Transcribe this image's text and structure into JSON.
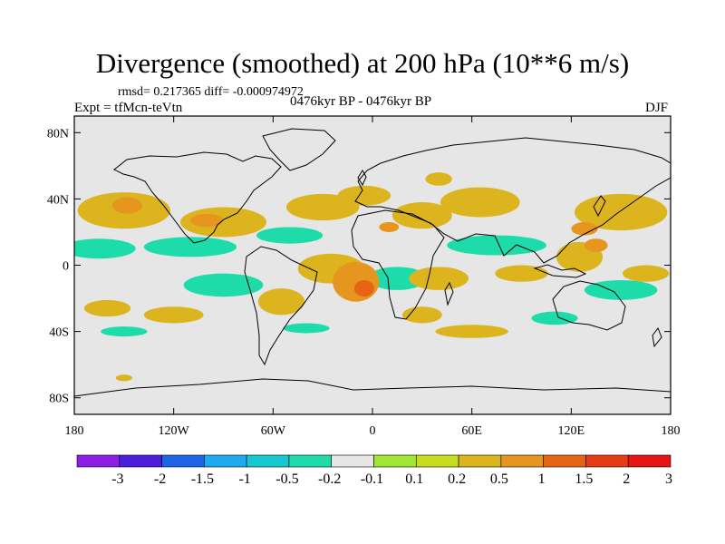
{
  "title": "Divergence (smoothed) at 200 hPa (10**6 m/s)",
  "stats_line": "rmsd= 0.217365 diff= -0.000974972",
  "experiment": "Expt = tfMcn-teVtn",
  "period": "0476kyr BP - 0476kyr BP",
  "season": "DJF",
  "map": {
    "projection": "cylindrical-equidistant",
    "lon_range": [
      -180,
      180
    ],
    "lat_range": [
      -90,
      90
    ],
    "background_color": "#e6e6e6",
    "lat_ticks": [
      {
        "lat": 80,
        "label": "80N"
      },
      {
        "lat": 40,
        "label": "40N"
      },
      {
        "lat": 0,
        "label": "0"
      },
      {
        "lat": -40,
        "label": "40S"
      },
      {
        "lat": -80,
        "label": "80S"
      }
    ],
    "lon_ticks": [
      {
        "lon": -180,
        "label": "180"
      },
      {
        "lon": -120,
        "label": "120W"
      },
      {
        "lon": -60,
        "label": "60W"
      },
      {
        "lon": 0,
        "label": "0"
      },
      {
        "lon": 60,
        "label": "60E"
      },
      {
        "lon": 120,
        "label": "120E"
      },
      {
        "lon": 180,
        "label": "180"
      }
    ]
  },
  "colorbar": {
    "colors": [
      "#8c1ee6",
      "#4b1edc",
      "#1e64e6",
      "#1eaaf0",
      "#14c8d2",
      "#1edcaa",
      "#e6e6e6",
      "#a0e632",
      "#c8dc1e",
      "#dcb41e",
      "#e6961e",
      "#e66414",
      "#e63c14",
      "#e61414"
    ],
    "labels": [
      "-3",
      "-2",
      "-1.5",
      "-1",
      "-0.5",
      "-0.2",
      "-0.1",
      "0.1",
      "0.2",
      "0.5",
      "1",
      "1.5",
      "2",
      "3"
    ]
  },
  "field_blobs": [
    {
      "lon": -150,
      "lat": 33,
      "rx": 28,
      "ry": 11,
      "v": 0.3
    },
    {
      "lon": -148,
      "lat": 36,
      "rx": 9,
      "ry": 5,
      "v": 0.7
    },
    {
      "lon": -90,
      "lat": 26,
      "rx": 26,
      "ry": 9,
      "v": 0.3
    },
    {
      "lon": -100,
      "lat": 27,
      "rx": 10,
      "ry": 4,
      "v": 0.7
    },
    {
      "lon": -30,
      "lat": 35,
      "rx": 22,
      "ry": 8,
      "v": 0.3
    },
    {
      "lon": -5,
      "lat": 42,
      "rx": 16,
      "ry": 6,
      "v": 0.25
    },
    {
      "lon": 30,
      "lat": 30,
      "rx": 18,
      "ry": 8,
      "v": 0.35
    },
    {
      "lon": 10,
      "lat": 23,
      "rx": 6,
      "ry": 3,
      "v": 0.7
    },
    {
      "lon": 65,
      "lat": 38,
      "rx": 24,
      "ry": 9,
      "v": 0.3
    },
    {
      "lon": 150,
      "lat": 32,
      "rx": 28,
      "ry": 11,
      "v": 0.3
    },
    {
      "lon": 128,
      "lat": 22,
      "rx": 8,
      "ry": 4,
      "v": 0.7
    },
    {
      "lon": 40,
      "lat": 52,
      "rx": 8,
      "ry": 4,
      "v": 0.25
    },
    {
      "lon": -165,
      "lat": 10,
      "rx": 22,
      "ry": 6,
      "v": -0.3
    },
    {
      "lon": -110,
      "lat": 11,
      "rx": 28,
      "ry": 6,
      "v": -0.3
    },
    {
      "lon": -50,
      "lat": 18,
      "rx": 20,
      "ry": 5,
      "v": -0.3
    },
    {
      "lon": 75,
      "lat": 12,
      "rx": 30,
      "ry": 6,
      "v": -0.3
    },
    {
      "lon": 15,
      "lat": -8,
      "rx": 18,
      "ry": 7,
      "v": -0.25
    },
    {
      "lon": -90,
      "lat": -12,
      "rx": 24,
      "ry": 7,
      "v": -0.3
    },
    {
      "lon": 150,
      "lat": -15,
      "rx": 22,
      "ry": 6,
      "v": -0.3
    },
    {
      "lon": -25,
      "lat": -2,
      "rx": 20,
      "ry": 9,
      "v": 0.3
    },
    {
      "lon": -10,
      "lat": -10,
      "rx": 14,
      "ry": 12,
      "v": 0.7
    },
    {
      "lon": -5,
      "lat": -14,
      "rx": 6,
      "ry": 5,
      "v": 1.2
    },
    {
      "lon": -55,
      "lat": -22,
      "rx": 14,
      "ry": 8,
      "v": 0.3
    },
    {
      "lon": 40,
      "lat": -8,
      "rx": 18,
      "ry": 7,
      "v": 0.3
    },
    {
      "lon": 30,
      "lat": -30,
      "rx": 12,
      "ry": 5,
      "v": 0.3
    },
    {
      "lon": 90,
      "lat": -5,
      "rx": 16,
      "ry": 5,
      "v": 0.3
    },
    {
      "lon": 125,
      "lat": 5,
      "rx": 14,
      "ry": 9,
      "v": 0.35
    },
    {
      "lon": 135,
      "lat": 12,
      "rx": 7,
      "ry": 4,
      "v": 0.7
    },
    {
      "lon": 165,
      "lat": -5,
      "rx": 14,
      "ry": 5,
      "v": 0.3
    },
    {
      "lon": -120,
      "lat": -30,
      "rx": 18,
      "ry": 5,
      "v": 0.3
    },
    {
      "lon": -160,
      "lat": -26,
      "rx": 14,
      "ry": 5,
      "v": 0.3
    },
    {
      "lon": 60,
      "lat": -40,
      "rx": 22,
      "ry": 4,
      "v": 0.25
    },
    {
      "lon": -150,
      "lat": -40,
      "rx": 14,
      "ry": 3,
      "v": -0.3
    },
    {
      "lon": -40,
      "lat": -38,
      "rx": 14,
      "ry": 3,
      "v": -0.25
    },
    {
      "lon": 110,
      "lat": -32,
      "rx": 14,
      "ry": 4,
      "v": -0.25
    },
    {
      "lon": -150,
      "lat": -68,
      "rx": 5,
      "ry": 2,
      "v": 0.3
    }
  ]
}
